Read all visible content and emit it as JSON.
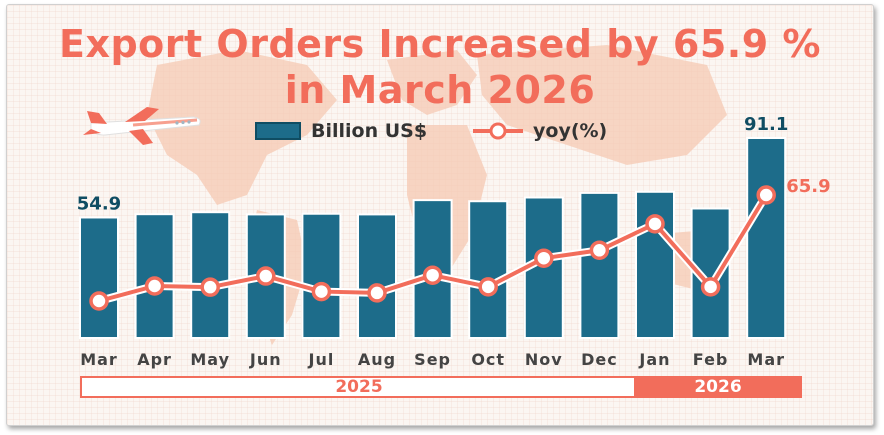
{
  "title_lines": [
    "Export Orders Increased by 65.9 %",
    "in March 2026"
  ],
  "legend": {
    "bar_label": "Billion US$",
    "line_label": "yoy(%)"
  },
  "years": [
    "2025",
    "2026"
  ],
  "colors": {
    "bar": "#1d6c8a",
    "bar_border": "#0f4d63",
    "line": "#f26d5b",
    "title": "#f26d5b",
    "value_bar": "#0f4d63"
  },
  "chart_data": {
    "type": "bar+line",
    "title": "Export Orders Increased by 65.9 % in March 2026",
    "categories": [
      "Mar",
      "Apr",
      "May",
      "Jun",
      "Jul",
      "Aug",
      "Sep",
      "Oct",
      "Nov",
      "Dec",
      "Jan",
      "Feb",
      "Mar"
    ],
    "series": [
      {
        "name": "Billion US$",
        "type": "bar",
        "values": [
          54.9,
          56.4,
          57.3,
          56.3,
          56.6,
          56.3,
          62.8,
          62.3,
          64.0,
          66.1,
          66.6,
          59.0,
          91.1
        ],
        "labels": [
          "54.9",
          "",
          "",
          "",
          "",
          "",
          "",
          "",
          "",
          "",
          "",
          "",
          "91.1"
        ]
      },
      {
        "name": "yoy(%)",
        "type": "line",
        "values": [
          3.0,
          11.9,
          11.2,
          17.8,
          8.6,
          7.8,
          18.3,
          11.4,
          28.4,
          33.1,
          48.8,
          11.4,
          65.9
        ],
        "labels": [
          "",
          "",
          "",
          "",
          "",
          "",
          "",
          "",
          "",
          "",
          "",
          "",
          "65.9"
        ]
      }
    ],
    "year_groups": [
      {
        "label": "2025",
        "from": 0,
        "to": 9
      },
      {
        "label": "2026",
        "from": 10,
        "to": 12
      }
    ],
    "grid": true,
    "legend_position": "top-center"
  }
}
